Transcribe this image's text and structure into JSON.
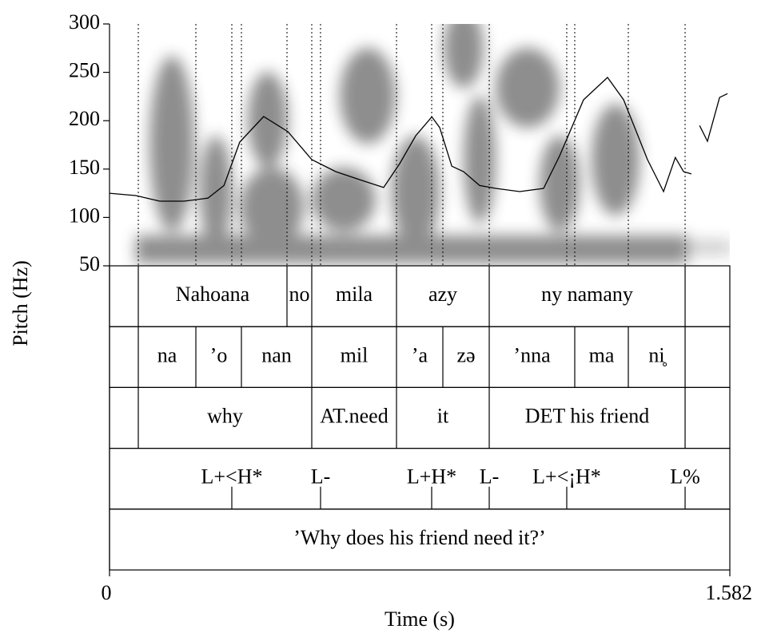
{
  "chart_data": {
    "type": "line",
    "y_label": "Pitch (Hz)",
    "x_label": "Time (s)",
    "xlim": [
      0,
      1.582
    ],
    "xticks": [
      0,
      1.582
    ],
    "ylim": [
      50,
      300
    ],
    "yticks": [
      50,
      100,
      150,
      200,
      250,
      300
    ],
    "x": [
      0,
      0.067,
      0.128,
      0.19,
      0.251,
      0.292,
      0.332,
      0.393,
      0.455,
      0.516,
      0.577,
      0.638,
      0.699,
      0.74,
      0.781,
      0.822,
      0.842,
      0.873,
      0.903,
      0.944,
      0.985,
      1.046,
      1.107,
      1.148,
      1.209,
      1.27,
      1.311,
      1.372,
      1.413,
      1.443,
      1.464,
      1.484,
      1.494,
      1.505,
      1.525,
      1.556,
      1.576
    ],
    "series": [
      {
        "color": "#000000",
        "values": [
          125,
          122.6,
          116.8,
          116.8,
          120,
          133,
          177.9,
          204.3,
          188.6,
          159.7,
          147.4,
          139,
          130.9,
          155.6,
          184.5,
          204,
          193,
          153,
          147.4,
          133,
          130,
          126.7,
          130,
          163.8,
          221.6,
          244.7,
          221.6,
          159.7,
          126.7,
          162,
          147.4,
          145,
          null,
          195,
          178.7,
          224,
          228
        ]
      }
    ],
    "tiers": [
      {
        "kind": "interval",
        "boundaries": [
          0.0734,
          0.4526,
          0.5158,
          0.7319,
          0.9684,
          1.4679
        ],
        "labels": [
          "Nahoana",
          "no",
          "mila",
          "azy",
          "ny namany"
        ]
      },
      {
        "kind": "interval",
        "boundaries": [
          0.0734,
          0.2202,
          0.3364,
          0.5158,
          0.7319,
          0.8501,
          0.9684,
          1.1865,
          1.3231,
          1.4679
        ],
        "labels": [
          "na",
          "’o",
          "nan",
          "mil",
          "’a",
          "zə",
          "’nna",
          "ma",
          "ni̥"
        ]
      },
      {
        "kind": "interval",
        "boundaries": [
          0.0734,
          0.5158,
          0.7319,
          0.9684,
          1.4679
        ],
        "labels": [
          "why",
          "AT.need",
          "it",
          "DET his friend"
        ]
      },
      {
        "kind": "point",
        "points": [
          0.3119,
          0.5382,
          0.8216,
          0.9684,
          1.1661,
          1.4679
        ],
        "labels": [
          "L+<H*",
          "L-",
          "L+H*",
          "L-",
          "L+<¡H*",
          "L%"
        ]
      },
      {
        "kind": "interval",
        "boundaries": [],
        "labels": [
          "’Why does his friend need it?’"
        ]
      }
    ],
    "spectrogram_marks": [
      0.0734,
      0.2202,
      0.3119,
      0.3364,
      0.4526,
      0.5158,
      0.5382,
      0.7319,
      0.8216,
      0.8501,
      0.9684,
      1.1661,
      1.1865,
      1.3231,
      1.4679
    ]
  }
}
